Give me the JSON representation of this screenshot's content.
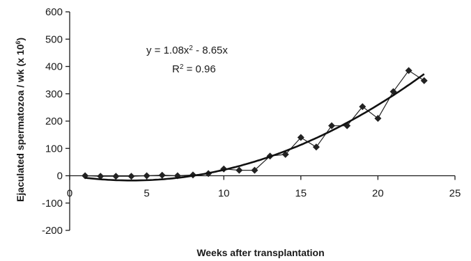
{
  "chart_data": {
    "type": "scatter",
    "xlabel": "Weeks after transplantation",
    "ylabel": "Ejaculated spermatozoa / wk (x 10",
    "ylabel_sup": "6",
    "ylabel_close": ")",
    "xlim": [
      0,
      25
    ],
    "ylim": [
      -200,
      600
    ],
    "x_ticks": [
      0,
      5,
      10,
      15,
      20,
      25
    ],
    "y_ticks": [
      -200,
      -100,
      0,
      100,
      200,
      300,
      400,
      500,
      600
    ],
    "grid": false,
    "legend": "none",
    "series": [
      {
        "marker": "diamond",
        "connected": true,
        "x": [
          1,
          2,
          3,
          4,
          5,
          6,
          7,
          8,
          9,
          10,
          11,
          12,
          13,
          14,
          15,
          16,
          17,
          18,
          19,
          20,
          21,
          22,
          23
        ],
        "y": [
          0,
          -2,
          -2,
          -2,
          0,
          2,
          0,
          3,
          8,
          25,
          20,
          20,
          72,
          78,
          140,
          105,
          183,
          183,
          253,
          210,
          308,
          385,
          348
        ]
      }
    ],
    "trendline": {
      "type": "polynomial",
      "coefficients": {
        "a": 1.08,
        "b": -8.65,
        "c": 0
      },
      "x_range": [
        1,
        23
      ],
      "equation_prefix": "y = 1.08x",
      "equation_sup": "2",
      "equation_suffix": " - 8.65x",
      "r2_prefix": "R",
      "r2_sup": "2",
      "r2_suffix": " = 0.96"
    },
    "colors": {
      "axis": "#1a1a1a",
      "series": "#222222",
      "trend": "#111111"
    }
  }
}
